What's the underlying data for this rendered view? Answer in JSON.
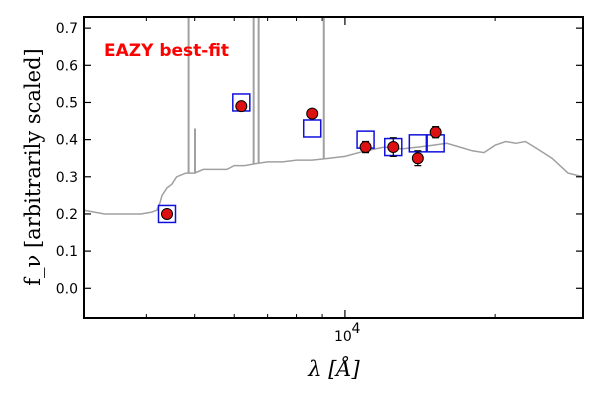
{
  "chart_data": {
    "type": "scatter",
    "title": "",
    "xlabel": "λ [Å]",
    "ylabel": "f_ν [arbitrarily scaled]",
    "xscale": "log",
    "xlim": [
      3000,
      30000
    ],
    "ylim": [
      -0.08,
      0.73
    ],
    "grid": false,
    "yticks": [
      {
        "value": 0.0,
        "label": "0.0"
      },
      {
        "value": 0.1,
        "label": "0.1"
      },
      {
        "value": 0.2,
        "label": "0.2"
      },
      {
        "value": 0.3,
        "label": "0.3"
      },
      {
        "value": 0.4,
        "label": "0.4"
      },
      {
        "value": 0.5,
        "label": "0.5"
      },
      {
        "value": 0.6,
        "label": "0.6"
      },
      {
        "value": 0.7,
        "label": "0.7"
      }
    ],
    "xticks": [
      {
        "value": 10000,
        "label": "10",
        "exp": "4"
      }
    ],
    "annotation": {
      "text": "EAZY best-fit",
      "color": "#ff0000"
    },
    "colors": {
      "sed": "#a0a0a0",
      "model": "#1010dd",
      "obs_fill": "#dd1111",
      "obs_edge": "#000000",
      "frame": "#000000"
    },
    "sed_template": {
      "x": [
        3000,
        3300,
        3600,
        3900,
        4100,
        4200,
        4260,
        4300,
        4350,
        4400,
        4500,
        4600,
        4800,
        5000,
        5200,
        5500,
        5800,
        6000,
        6300,
        6600,
        7000,
        7500,
        8000,
        8600,
        9300,
        10000,
        11000,
        12000,
        13000,
        14000,
        15000,
        16000,
        17000,
        18000,
        19000,
        20000,
        21000,
        22000,
        23000,
        24000,
        26000,
        28000,
        30000
      ],
      "y": [
        0.21,
        0.2,
        0.2,
        0.2,
        0.205,
        0.21,
        0.23,
        0.25,
        0.26,
        0.27,
        0.28,
        0.3,
        0.31,
        0.31,
        0.32,
        0.32,
        0.32,
        0.33,
        0.33,
        0.335,
        0.34,
        0.34,
        0.345,
        0.345,
        0.35,
        0.355,
        0.37,
        0.38,
        0.375,
        0.38,
        0.385,
        0.39,
        0.38,
        0.37,
        0.365,
        0.385,
        0.395,
        0.39,
        0.395,
        0.38,
        0.35,
        0.31,
        0.3
      ]
    },
    "emission_lines": [
      {
        "x": 4861,
        "y": 0.72
      },
      {
        "x": 5007,
        "y": 0.43
      },
      {
        "x": 6563,
        "y": 0.72
      },
      {
        "x": 6716,
        "y": 0.72
      },
      {
        "x": 9069,
        "y": 0.72
      }
    ],
    "model_photometry": {
      "name": "model",
      "x": [
        4400,
        6200,
        8600,
        11000,
        12500,
        14000,
        15200
      ],
      "y": [
        0.2,
        0.5,
        0.43,
        0.4,
        0.38,
        0.39,
        0.39
      ]
    },
    "observed_photometry": {
      "name": "observed",
      "x": [
        4400,
        6200,
        8600,
        11000,
        12500,
        14000,
        15200
      ],
      "y": [
        0.2,
        0.49,
        0.47,
        0.38,
        0.38,
        0.35,
        0.42
      ],
      "yerr": [
        0.005,
        0.005,
        0.005,
        0.015,
        0.025,
        0.02,
        0.015
      ]
    }
  }
}
